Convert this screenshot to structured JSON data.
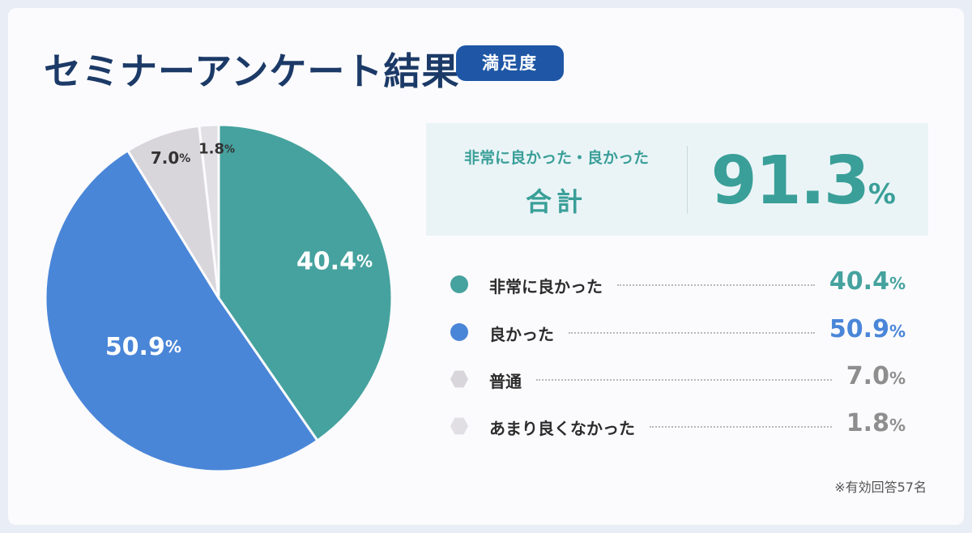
{
  "header": {
    "title": "セミナーアンケート結果",
    "badge": "満足度"
  },
  "summary": {
    "sub_label": "非常に良かった・良かった",
    "main_label": "合計",
    "total_value": "91.3",
    "total_unit": "%"
  },
  "footnote": "※有効回答57名",
  "colors": {
    "very_good": "#46a29e",
    "good": "#4a86d8",
    "neutral": "#d9d6db",
    "not_good": "#e1dfe3",
    "title": "#1c3a67",
    "badge_bg": "#1f57a6"
  },
  "chart_data": {
    "type": "pie",
    "title": "セミナーアンケート結果",
    "unit": "%",
    "slices": [
      {
        "label": "非常に良かった",
        "value": 40.4,
        "value_text": "40.4",
        "color": "#46a29e"
      },
      {
        "label": "良かった",
        "value": 50.9,
        "value_text": "50.9",
        "color": "#4a86d8"
      },
      {
        "label": "普通",
        "value": 7.0,
        "value_text": "7.0",
        "color": "#d9d6db"
      },
      {
        "label": "あまり良くなかった",
        "value": 1.8,
        "value_text": "1.8",
        "color": "#e1dfe3"
      }
    ]
  }
}
